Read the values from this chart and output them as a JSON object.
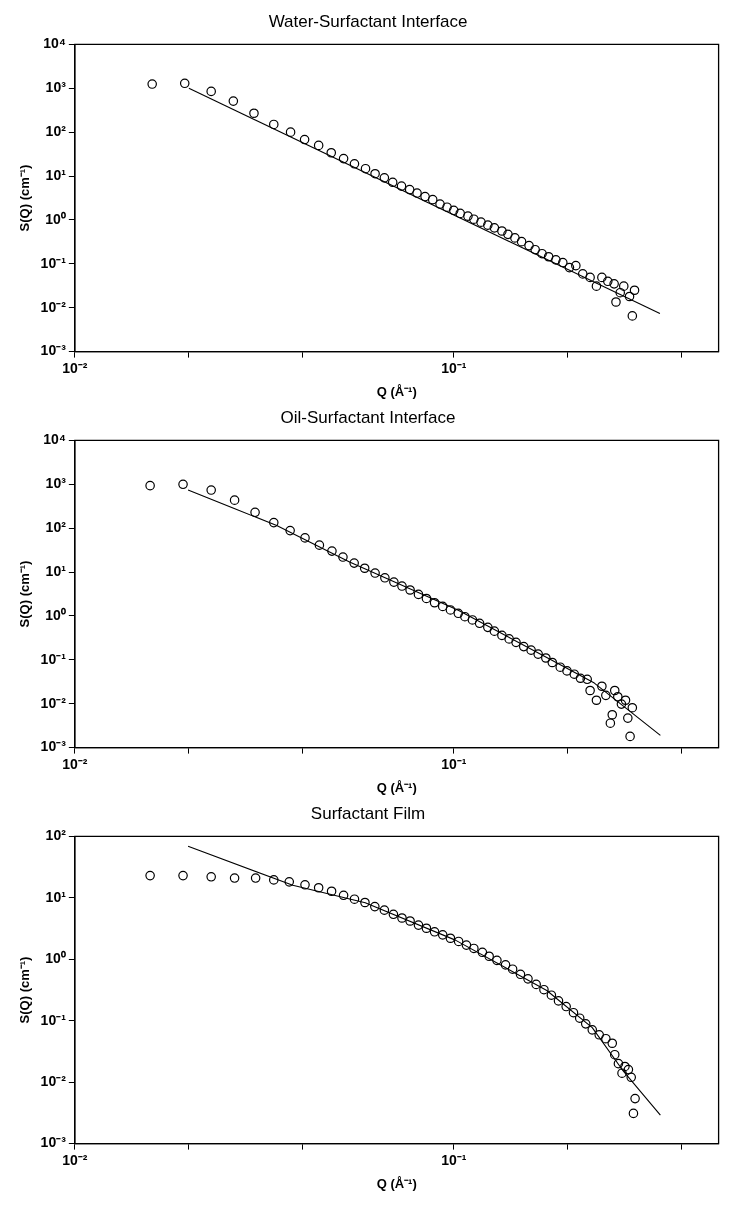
{
  "chart_data": [
    {
      "type": "scatter",
      "title": "Water-Surfactant Interface",
      "xlabel": "Q (Å⁻¹)",
      "ylabel": "S(Q) (cm⁻¹)",
      "log": "xy",
      "xlim": [
        0.01,
        0.5
      ],
      "xticks": [
        {
          "value": 0.01,
          "label": "10⁻²"
        },
        {
          "value": 0.02,
          "label": null
        },
        {
          "value": 0.04,
          "label": null
        },
        {
          "value": 0.1,
          "label": "10⁻¹"
        },
        {
          "value": 0.2,
          "label": null
        },
        {
          "value": 0.4,
          "label": null
        }
      ],
      "ylim": [
        0.001,
        10000
      ],
      "yticks": [
        {
          "value": 0.001,
          "label": "10⁻³"
        },
        {
          "value": 0.01,
          "label": "10⁻²"
        },
        {
          "value": 0.1,
          "label": "10⁻¹"
        },
        {
          "value": 1,
          "label": "10⁰"
        },
        {
          "value": 10,
          "label": "10¹"
        },
        {
          "value": 100,
          "label": "10²"
        },
        {
          "value": 1000,
          "label": "10³"
        },
        {
          "value": 10000,
          "label": "10⁴"
        }
      ],
      "series": [
        {
          "marker": "circle",
          "color": "#000000",
          "x": [
            0.016,
            0.0195,
            0.0229,
            0.0262,
            0.0297,
            0.0335,
            0.0371,
            0.0404,
            0.044,
            0.0475,
            0.0512,
            0.0547,
            0.0585,
            0.062,
            0.0656,
            0.069,
            0.0728,
            0.0765,
            0.08,
            0.084,
            0.088,
            0.092,
            0.096,
            0.1,
            0.104,
            0.109,
            0.113,
            0.118,
            0.123,
            0.128,
            0.134,
            0.139,
            0.145,
            0.151,
            0.158,
            0.164,
            0.171,
            0.178,
            0.186,
            0.194,
            0.202,
            0.21,
            0.219,
            0.229,
            0.238,
            0.246,
            0.255,
            0.265,
            0.268,
            0.275,
            0.281,
            0.291,
            0.296,
            0.3
          ],
          "values": [
            1250,
            1300,
            850,
            510,
            270,
            150,
            100,
            68,
            50,
            34,
            25,
            19,
            14.7,
            11.3,
            9.1,
            7.2,
            5.9,
            4.9,
            4.1,
            3.4,
            2.9,
            2.3,
            1.95,
            1.66,
            1.41,
            1.22,
            1.04,
            0.89,
            0.76,
            0.66,
            0.56,
            0.47,
            0.39,
            0.32,
            0.26,
            0.21,
            0.17,
            0.145,
            0.123,
            0.107,
            0.082,
            0.091,
            0.059,
            0.049,
            0.031,
            0.049,
            0.04,
            0.035,
            0.0135,
            0.022,
            0.031,
            0.018,
            0.0065,
            0.025
          ]
        },
        {
          "type": "line",
          "marker": "none",
          "color": "#000000",
          "x": [
            0.02,
            0.35
          ],
          "values": [
            1000,
            0.0074
          ]
        }
      ]
    },
    {
      "type": "scatter",
      "title": "Oil-Surfactant Interface",
      "xlabel": "Q (Å⁻¹)",
      "ylabel": "S(Q) (cm⁻¹)",
      "log": "xy",
      "xlim": [
        0.01,
        0.5
      ],
      "xticks": [
        {
          "value": 0.01,
          "label": "10⁻²"
        },
        {
          "value": 0.02,
          "label": null
        },
        {
          "value": 0.04,
          "label": null
        },
        {
          "value": 0.1,
          "label": "10⁻¹"
        },
        {
          "value": 0.2,
          "label": null
        },
        {
          "value": 0.4,
          "label": null
        }
      ],
      "ylim": [
        0.001,
        10000
      ],
      "yticks": [
        {
          "value": 0.001,
          "label": "10⁻³"
        },
        {
          "value": 0.01,
          "label": "10⁻²"
        },
        {
          "value": 0.1,
          "label": "10⁻¹"
        },
        {
          "value": 1,
          "label": "10⁰"
        },
        {
          "value": 10,
          "label": "10¹"
        },
        {
          "value": 100,
          "label": "10²"
        },
        {
          "value": 1000,
          "label": "10³"
        },
        {
          "value": 10000,
          "label": "10⁴"
        }
      ],
      "series": [
        {
          "marker": "circle",
          "color": "#000000",
          "x": [
            0.0158,
            0.0193,
            0.0229,
            0.0264,
            0.0299,
            0.0335,
            0.037,
            0.0405,
            0.0442,
            0.0477,
            0.051,
            0.0546,
            0.0582,
            0.062,
            0.0658,
            0.0695,
            0.073,
            0.0767,
            0.0807,
            0.0847,
            0.089,
            0.0935,
            0.098,
            0.1028,
            0.107,
            0.112,
            0.117,
            0.123,
            0.128,
            0.134,
            0.14,
            0.146,
            0.153,
            0.16,
            0.167,
            0.175,
            0.182,
            0.191,
            0.199,
            0.208,
            0.216,
            0.225,
            0.229,
            0.238,
            0.246,
            0.252,
            0.259,
            0.262,
            0.266,
            0.271,
            0.277,
            0.284,
            0.288,
            0.292,
            0.296
          ],
          "values": [
            930,
            1000,
            740,
            435,
            230,
            134,
            88,
            60,
            41,
            30,
            22,
            16,
            12.2,
            9.5,
            7.4,
            5.9,
            4.8,
            3.9,
            3.1,
            2.5,
            2,
            1.65,
            1.37,
            1.15,
            0.96,
            0.81,
            0.68,
            0.55,
            0.45,
            0.36,
            0.3,
            0.25,
            0.2,
            0.166,
            0.135,
            0.11,
            0.087,
            0.068,
            0.056,
            0.047,
            0.038,
            0.036,
            0.02,
            0.012,
            0.025,
            0.0155,
            0.0036,
            0.0056,
            0.02,
            0.0144,
            0.0098,
            0.012,
            0.0047,
            0.0018,
            0.0081
          ]
        },
        {
          "type": "line",
          "marker": "none",
          "color": "#000000",
          "x": [
            0.0199,
            0.0341,
            0.0531,
            0.1028,
            0.178,
            0.235,
            0.351
          ],
          "values": [
            740,
            115,
            17,
            1.35,
            0.107,
            0.0295,
            0.0019
          ]
        }
      ]
    },
    {
      "type": "scatter",
      "title": "Surfactant Film",
      "xlabel": "Q (Å⁻¹)",
      "ylabel": "S(Q) (cm⁻¹)",
      "log": "xy",
      "xlim": [
        0.01,
        0.5
      ],
      "xticks": [
        {
          "value": 0.01,
          "label": "10⁻²"
        },
        {
          "value": 0.02,
          "label": null
        },
        {
          "value": 0.04,
          "label": null
        },
        {
          "value": 0.1,
          "label": "10⁻¹"
        },
        {
          "value": 0.2,
          "label": null
        },
        {
          "value": 0.4,
          "label": null
        }
      ],
      "ylim": [
        0.001,
        100
      ],
      "yticks": [
        {
          "value": 0.001,
          "label": "10⁻³"
        },
        {
          "value": 0.01,
          "label": "10⁻²"
        },
        {
          "value": 0.1,
          "label": "10⁻¹"
        },
        {
          "value": 1,
          "label": "10⁰"
        },
        {
          "value": 10,
          "label": "10¹"
        },
        {
          "value": 100,
          "label": "10²"
        }
      ],
      "series": [
        {
          "marker": "circle",
          "color": "#000000",
          "x": [
            0.0158,
            0.0193,
            0.0229,
            0.0264,
            0.03,
            0.0335,
            0.0368,
            0.0405,
            0.044,
            0.0476,
            0.0512,
            0.0547,
            0.0583,
            0.0619,
            0.0656,
            0.0693,
            0.073,
            0.0767,
            0.0807,
            0.0847,
            0.089,
            0.0935,
            0.098,
            0.103,
            0.108,
            0.113,
            0.119,
            0.124,
            0.13,
            0.137,
            0.143,
            0.15,
            0.157,
            0.165,
            0.173,
            0.181,
            0.189,
            0.198,
            0.207,
            0.215,
            0.223,
            0.232,
            0.242,
            0.252,
            0.262,
            0.266,
            0.272,
            0.278,
            0.283,
            0.289,
            0.294,
            0.301,
            0.298
          ],
          "values": [
            23,
            23,
            22,
            21,
            21,
            19.6,
            18.2,
            16.3,
            14.6,
            12.8,
            11,
            9.5,
            8.4,
            7.2,
            6.3,
            5.4,
            4.7,
            4.2,
            3.6,
            3.2,
            2.8,
            2.5,
            2.2,
            1.95,
            1.7,
            1.5,
            1.3,
            1.12,
            0.96,
            0.81,
            0.69,
            0.57,
            0.48,
            0.39,
            0.32,
            0.26,
            0.21,
            0.17,
            0.135,
            0.11,
            0.089,
            0.071,
            0.059,
            0.051,
            0.043,
            0.028,
            0.02,
            0.014,
            0.018,
            0.016,
            0.012,
            0.0054,
            0.0031
          ]
        },
        {
          "type": "line",
          "marker": "none",
          "color": "#000000",
          "x": [
            0.0199,
            0.0376,
            0.0584,
            0.101,
            0.176,
            0.232,
            0.281,
            0.351
          ],
          "values": [
            69,
            16,
            8.3,
            2.05,
            0.31,
            0.077,
            0.0148,
            0.0029
          ]
        }
      ]
    }
  ]
}
